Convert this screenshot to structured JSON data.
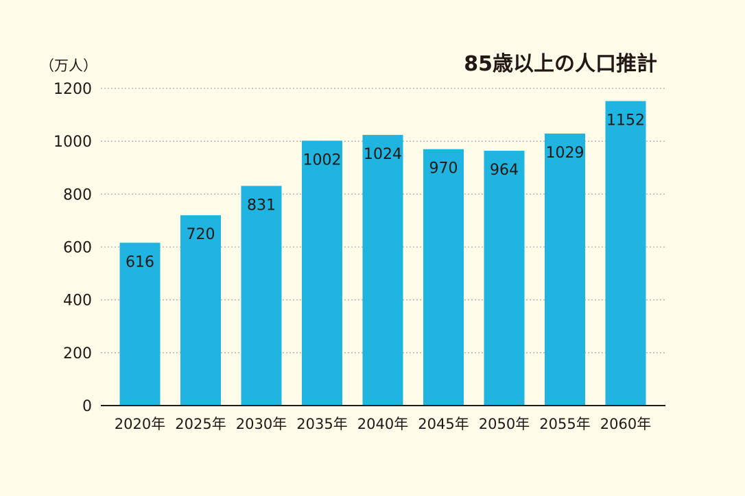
{
  "chart_data": {
    "type": "bar",
    "title": "85歳以上の人口推計",
    "ylabel": "（万人）",
    "xlabel": "",
    "categories": [
      "2020年",
      "2025年",
      "2030年",
      "2035年",
      "2040年",
      "2045年",
      "2050年",
      "2055年",
      "2060年"
    ],
    "values": [
      616,
      720,
      831,
      1002,
      1024,
      970,
      964,
      1029,
      1152
    ],
    "ylim": [
      0,
      1200
    ],
    "yticks": [
      0,
      200,
      400,
      600,
      800,
      1000,
      1200
    ],
    "grid": true,
    "colors": {
      "bar": "#1fb5e0",
      "grid": "#b8b8b8",
      "axis": "#231815",
      "text": "#231815",
      "background": "#fffdea"
    }
  }
}
